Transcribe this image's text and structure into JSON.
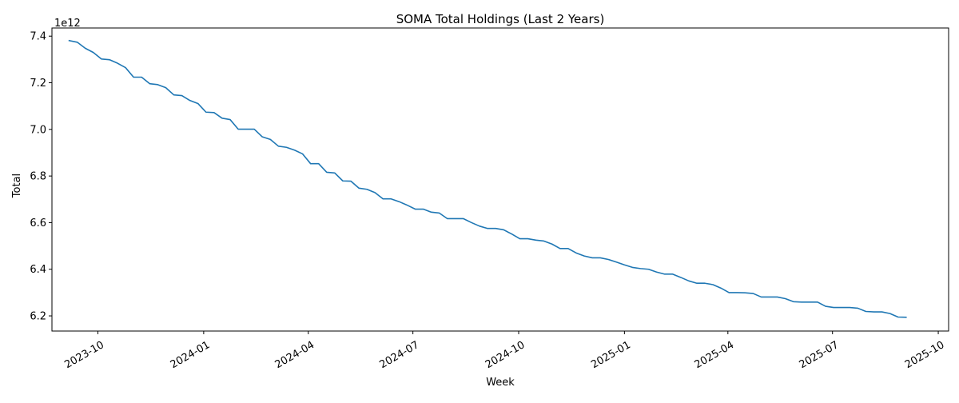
{
  "chart_data": {
    "type": "line",
    "title": "SOMA Total Holdings (Last 2 Years)",
    "xlabel": "Week",
    "ylabel": "Total",
    "y_offset_label": "1e12",
    "y_tick_values": [
      6.2,
      6.4,
      6.6,
      6.8,
      7.0,
      7.2,
      7.4
    ],
    "y_tick_labels": [
      "6.2",
      "6.4",
      "6.6",
      "6.8",
      "7.0",
      "7.2",
      "7.4"
    ],
    "ylim": [
      6.135,
      7.435
    ],
    "xlim": [
      "2023-08-22",
      "2025-10-10"
    ],
    "x_ticks": [
      "2023-10-01",
      "2024-01-01",
      "2024-04-01",
      "2024-07-01",
      "2024-10-01",
      "2025-01-01",
      "2025-04-01",
      "2025-07-01",
      "2025-10-01"
    ],
    "x_tick_labels": [
      "2023-10",
      "2024-01",
      "2024-04",
      "2024-07",
      "2024-10",
      "2025-01",
      "2025-04",
      "2025-07",
      "2025-10"
    ],
    "grid": false,
    "line_color": "#1f77b4",
    "series": [
      {
        "x": [
          "2023-09-06",
          "2023-09-13",
          "2023-09-20",
          "2023-09-27",
          "2023-10-04",
          "2023-10-11",
          "2023-10-18",
          "2023-10-25",
          "2023-11-01",
          "2023-11-08",
          "2023-11-15",
          "2023-11-22",
          "2023-11-29",
          "2023-12-06",
          "2023-12-13",
          "2023-12-20",
          "2023-12-27",
          "2024-01-03",
          "2024-01-10",
          "2024-01-17",
          "2024-01-24",
          "2024-01-31",
          "2024-02-07",
          "2024-02-14",
          "2024-02-21",
          "2024-02-28",
          "2024-03-06",
          "2024-03-13",
          "2024-03-20",
          "2024-03-27",
          "2024-04-03",
          "2024-04-10",
          "2024-04-17",
          "2024-04-24",
          "2024-05-01",
          "2024-05-08",
          "2024-05-15",
          "2024-05-22",
          "2024-05-29",
          "2024-06-05",
          "2024-06-12",
          "2024-06-19",
          "2024-06-26",
          "2024-07-03",
          "2024-07-10",
          "2024-07-17",
          "2024-07-24",
          "2024-07-31",
          "2024-08-07",
          "2024-08-14",
          "2024-08-21",
          "2024-08-28",
          "2024-09-04",
          "2024-09-11",
          "2024-09-18",
          "2024-09-25",
          "2024-10-02",
          "2024-10-09",
          "2024-10-16",
          "2024-10-23",
          "2024-10-30",
          "2024-11-06",
          "2024-11-13",
          "2024-11-20",
          "2024-11-27",
          "2024-12-04",
          "2024-12-11",
          "2024-12-18",
          "2024-12-25",
          "2025-01-01",
          "2025-01-08",
          "2025-01-15",
          "2025-01-22",
          "2025-01-29",
          "2025-02-05",
          "2025-02-12",
          "2025-02-19",
          "2025-02-26",
          "2025-03-05",
          "2025-03-12",
          "2025-03-19",
          "2025-03-26",
          "2025-04-02",
          "2025-04-09",
          "2025-04-16",
          "2025-04-23",
          "2025-04-30",
          "2025-05-07",
          "2025-05-14",
          "2025-05-21",
          "2025-05-28",
          "2025-06-04",
          "2025-06-11",
          "2025-06-18",
          "2025-06-25",
          "2025-07-02",
          "2025-07-09",
          "2025-07-16",
          "2025-07-23",
          "2025-07-30",
          "2025-08-06",
          "2025-08-13",
          "2025-08-20",
          "2025-08-27",
          "2025-09-03"
        ],
        "values": [
          7.381,
          7.374,
          7.348,
          7.33,
          7.302,
          7.299,
          7.284,
          7.265,
          7.224,
          7.224,
          7.196,
          7.192,
          7.179,
          7.148,
          7.145,
          7.124,
          7.111,
          7.074,
          7.072,
          7.048,
          7.042,
          7.001,
          7.001,
          7.001,
          6.968,
          6.957,
          6.928,
          6.923,
          6.911,
          6.895,
          6.853,
          6.853,
          6.816,
          6.813,
          6.779,
          6.778,
          6.748,
          6.743,
          6.729,
          6.702,
          6.702,
          6.69,
          6.675,
          6.658,
          6.658,
          6.645,
          6.641,
          6.617,
          6.617,
          6.617,
          6.6,
          6.585,
          6.575,
          6.575,
          6.569,
          6.551,
          6.531,
          6.531,
          6.525,
          6.521,
          6.508,
          6.489,
          6.489,
          6.47,
          6.457,
          6.449,
          6.449,
          6.442,
          6.431,
          6.419,
          6.408,
          6.403,
          6.4,
          6.388,
          6.379,
          6.379,
          6.365,
          6.35,
          6.34,
          6.34,
          6.334,
          6.319,
          6.3,
          6.3,
          6.299,
          6.296,
          6.281,
          6.281,
          6.281,
          6.274,
          6.261,
          6.259,
          6.259,
          6.259,
          6.241,
          6.236,
          6.236,
          6.236,
          6.233,
          6.219,
          6.217,
          6.217,
          6.21,
          6.195,
          6.194
        ]
      }
    ]
  }
}
